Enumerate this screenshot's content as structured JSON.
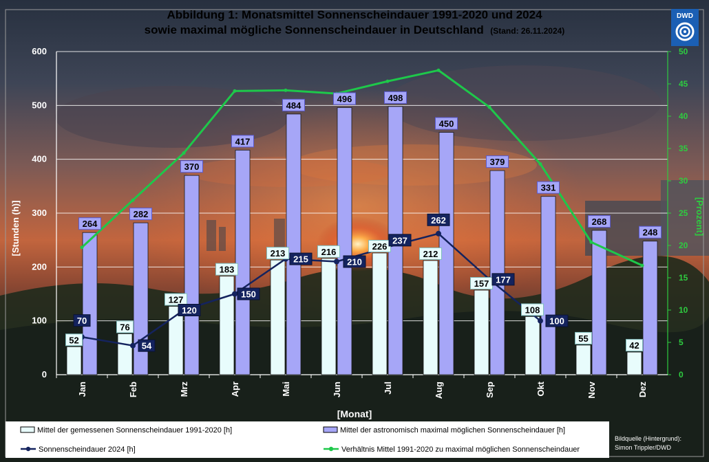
{
  "chart_data": {
    "type": "bar",
    "title_line1": "Abbildung 1: Monatsmittel Sonnenscheindauer 1991-2020 und 2024",
    "title_line2": "sowie maximal mögliche Sonnenscheindauer in Deutschland",
    "title_stand": "(Stand: 26.11.2024)",
    "xlabel": "[Monat]",
    "ylabel": "[Stunden (h)]",
    "y2label": "[Prozent]",
    "ylim": [
      0,
      600
    ],
    "y2lim": [
      0,
      50
    ],
    "yticks": [
      0,
      100,
      200,
      300,
      400,
      500,
      600
    ],
    "y2ticks": [
      0,
      5,
      10,
      15,
      20,
      25,
      30,
      35,
      40,
      45,
      50
    ],
    "categories": [
      "Jan",
      "Feb",
      "Mrz",
      "Apr",
      "Mai",
      "Jun",
      "Jul",
      "Aug",
      "Sep",
      "Okt",
      "Nov",
      "Dez"
    ],
    "series": [
      {
        "name": "Mittel der gemessenen Sonnenscheindauer 1991-2020 [h]",
        "type": "bar",
        "color": "#e8fcfc",
        "values": [
          52,
          76,
          127,
          183,
          213,
          216,
          226,
          212,
          157,
          108,
          55,
          42
        ]
      },
      {
        "name": "Mittel der astronomisch maximal möglichen Sonnenscheindauer [h]",
        "type": "bar",
        "color": "#a6a6f7",
        "values": [
          264,
          282,
          370,
          417,
          484,
          496,
          498,
          450,
          379,
          331,
          268,
          248
        ]
      },
      {
        "name": "Sonnenscheindauer 2024 [h]",
        "type": "line",
        "color": "#14235e",
        "values": [
          70,
          54,
          120,
          150,
          215,
          210,
          237,
          262,
          177,
          100,
          null,
          null
        ]
      },
      {
        "name": "Verhältnis Mittel 1991-2020 zu maximal möglichen Sonnenscheindauer",
        "type": "line",
        "axis": "right",
        "color": "#1ec84a",
        "values": [
          19.7,
          27.0,
          34.3,
          43.9,
          44.0,
          43.5,
          45.4,
          47.1,
          41.4,
          32.6,
          20.5,
          16.9
        ]
      }
    ],
    "grid": true,
    "legend_position": "bottom"
  },
  "logo": {
    "text": "DWD"
  },
  "credit": {
    "line1": "Bildquelle (Hintergrund):",
    "line2": "Simon Trippler/DWD"
  },
  "colors": {
    "left_axis": "#ffffff",
    "right_axis": "#2ecc40",
    "legend_box": "#ffffff"
  }
}
